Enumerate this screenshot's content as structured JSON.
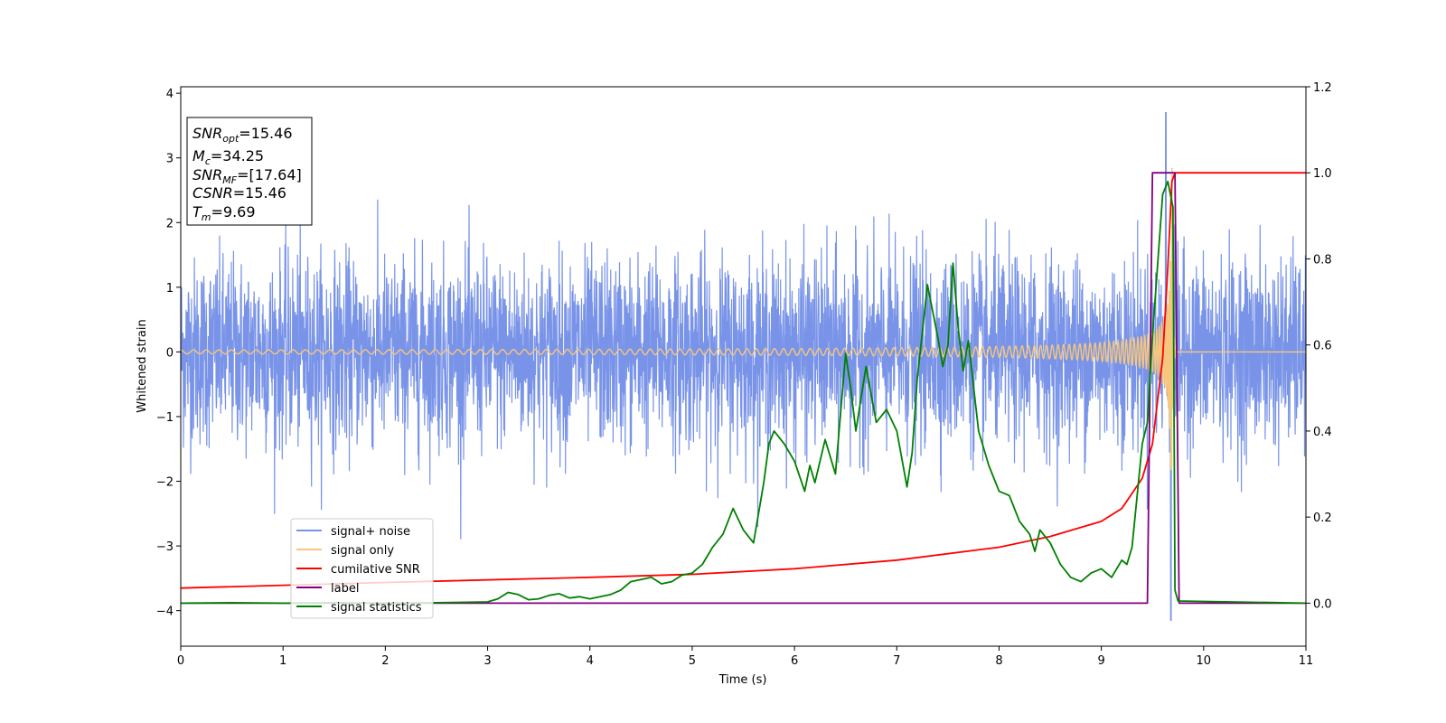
{
  "chart_data": {
    "type": "line",
    "xlabel": "Time (s)",
    "ylabel": "Whitened strain",
    "xlim": [
      0,
      11
    ],
    "ylim": [
      -4.55,
      4.1
    ],
    "y2lim": [
      -0.1,
      1.2
    ],
    "xticks": [
      "0",
      "1",
      "2",
      "3",
      "4",
      "5",
      "6",
      "7",
      "8",
      "9",
      "10",
      "11"
    ],
    "yticks": [
      "−4",
      "−3",
      "−2",
      "−1",
      "0",
      "1",
      "2",
      "3",
      "4"
    ],
    "y2ticks": [
      "0.0",
      "0.2",
      "0.4",
      "0.6",
      "0.8",
      "1.0",
      "1.2"
    ],
    "grid": false,
    "legend_position": "lower-left",
    "info_box": {
      "lines": [
        {
          "sym": "SNR",
          "sub": "opt",
          "val": "=15.46"
        },
        {
          "sym": "M",
          "sub": "c",
          "val": "=34.25"
        },
        {
          "sym": "SNR",
          "sub": "MF",
          "val": "=[17.64]"
        },
        {
          "sym": "CSNR",
          "sub": "",
          "val": "=15.46"
        },
        {
          "sym": "T",
          "sub": "m",
          "val": "=9.69"
        }
      ]
    },
    "series": [
      {
        "name": "signal+ noise",
        "color": "#7893e8",
        "axis": "left",
        "kind": "noise",
        "std": 0.72,
        "peak_t": 9.63,
        "peak_y": 3.7,
        "min_y": -4.15
      },
      {
        "name": "signal only",
        "color": "#f5c77e",
        "axis": "left",
        "kind": "chirp",
        "tc": 9.69,
        "peak_amp": 3.25,
        "base_amp": 0.03
      },
      {
        "name": "cumilative SNR",
        "color": "#ff0000",
        "axis": "right",
        "x": [
          0,
          2,
          4,
          5,
          6,
          7,
          8,
          8.5,
          9,
          9.2,
          9.4,
          9.5,
          9.6,
          9.65,
          9.69,
          9.72,
          11
        ],
        "y": [
          0.035,
          0.048,
          0.06,
          0.067,
          0.08,
          0.1,
          0.13,
          0.155,
          0.19,
          0.22,
          0.29,
          0.37,
          0.57,
          0.78,
          0.98,
          1.0,
          1.0
        ]
      },
      {
        "name": "label",
        "color": "#800080",
        "axis": "right",
        "x": [
          0,
          9.45,
          9.5,
          9.72,
          9.76,
          11
        ],
        "y": [
          0.0,
          0.0,
          1.0,
          1.0,
          0.0,
          0.0
        ]
      },
      {
        "name": "signal statistics",
        "color": "#008000",
        "axis": "right",
        "x": [
          0,
          0.5,
          1,
          1.5,
          2,
          2.5,
          3,
          3.1,
          3.2,
          3.3,
          3.4,
          3.5,
          3.6,
          3.7,
          3.8,
          3.9,
          4,
          4.1,
          4.2,
          4.3,
          4.4,
          4.5,
          4.6,
          4.7,
          4.8,
          4.9,
          5.0,
          5.1,
          5.2,
          5.3,
          5.4,
          5.5,
          5.6,
          5.7,
          5.75,
          5.8,
          5.9,
          6.0,
          6.1,
          6.15,
          6.2,
          6.3,
          6.4,
          6.5,
          6.55,
          6.6,
          6.7,
          6.8,
          6.9,
          7.0,
          7.1,
          7.15,
          7.2,
          7.3,
          7.4,
          7.45,
          7.5,
          7.55,
          7.6,
          7.65,
          7.7,
          7.8,
          7.9,
          8.0,
          8.1,
          8.2,
          8.3,
          8.35,
          8.4,
          8.5,
          8.6,
          8.7,
          8.8,
          8.9,
          9.0,
          9.1,
          9.2,
          9.25,
          9.3,
          9.4,
          9.45,
          9.5,
          9.6,
          9.65,
          9.7,
          9.72,
          9.75,
          11
        ],
        "y": [
          0.0,
          0.001,
          0.0,
          0.001,
          0.0,
          0.001,
          0.003,
          0.01,
          0.025,
          0.02,
          0.008,
          0.01,
          0.018,
          0.022,
          0.012,
          0.015,
          0.01,
          0.015,
          0.02,
          0.03,
          0.05,
          0.055,
          0.06,
          0.045,
          0.05,
          0.065,
          0.07,
          0.09,
          0.13,
          0.16,
          0.22,
          0.17,
          0.14,
          0.28,
          0.37,
          0.4,
          0.37,
          0.33,
          0.26,
          0.32,
          0.28,
          0.38,
          0.3,
          0.58,
          0.5,
          0.4,
          0.55,
          0.42,
          0.45,
          0.4,
          0.27,
          0.35,
          0.52,
          0.74,
          0.62,
          0.55,
          0.6,
          0.79,
          0.64,
          0.54,
          0.61,
          0.4,
          0.32,
          0.26,
          0.25,
          0.19,
          0.16,
          0.12,
          0.17,
          0.14,
          0.09,
          0.06,
          0.05,
          0.07,
          0.08,
          0.06,
          0.1,
          0.09,
          0.13,
          0.37,
          0.42,
          0.62,
          0.95,
          0.98,
          0.92,
          0.03,
          0.005,
          0.0
        ]
      }
    ]
  }
}
